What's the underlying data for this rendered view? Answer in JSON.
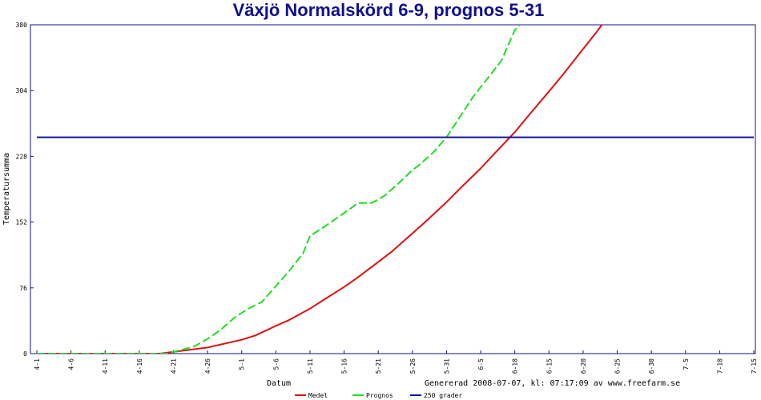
{
  "chart_data": {
    "type": "line",
    "title": "Växjö Normalskörd 6-9, prognos 5-31",
    "xlabel": "Datum",
    "ylabel": "Temperatursumma",
    "generated": "Genererad 2008-07-07, kl: 07:17:09 av www.freefarm.se",
    "ylim": [
      0,
      380
    ],
    "yticks": [
      0,
      76,
      152,
      228,
      304,
      380
    ],
    "xticks": [
      "4-1",
      "4-6",
      "4-11",
      "4-16",
      "4-21",
      "4-26",
      "5-1",
      "5-6",
      "5-11",
      "5-16",
      "5-21",
      "5-26",
      "5-31",
      "6-5",
      "6-10",
      "6-15",
      "6-20",
      "6-25",
      "6-30",
      "7-5",
      "7-10",
      "7-15"
    ],
    "xlim_days": [
      0,
      105
    ],
    "grid": false,
    "legend_position": "bottom",
    "series": [
      {
        "name": "Medel",
        "color": "#e01010",
        "dash": false,
        "points": [
          [
            "4-1",
            0
          ],
          [
            "4-19",
            0
          ],
          [
            "4-22",
            3
          ],
          [
            "4-26",
            7
          ],
          [
            "5-1",
            16
          ],
          [
            "5-3",
            21
          ],
          [
            "5-6",
            32
          ],
          [
            "5-8",
            39
          ],
          [
            "5-11",
            52
          ],
          [
            "5-13",
            62
          ],
          [
            "5-16",
            77
          ],
          [
            "5-18",
            88
          ],
          [
            "5-21",
            106
          ],
          [
            "5-23",
            118
          ],
          [
            "5-26",
            139
          ],
          [
            "5-28",
            153
          ],
          [
            "5-31",
            175
          ],
          [
            "6-2",
            191
          ],
          [
            "6-5",
            214
          ],
          [
            "6-7",
            231
          ],
          [
            "6-10",
            256
          ],
          [
            "6-12",
            275
          ],
          [
            "6-15",
            303
          ],
          [
            "6-17",
            322
          ],
          [
            "6-20",
            352
          ],
          [
            "6-22",
            372
          ],
          [
            "6-25",
            404
          ]
        ]
      },
      {
        "name": "Prognos",
        "color": "#22dd22",
        "dash": true,
        "points": [
          [
            "4-1",
            0
          ],
          [
            "4-20",
            0
          ],
          [
            "4-22",
            4
          ],
          [
            "4-24",
            8
          ],
          [
            "4-26",
            17
          ],
          [
            "4-28",
            28
          ],
          [
            "4-30",
            42
          ],
          [
            "5-2",
            52
          ],
          [
            "5-4",
            60
          ],
          [
            "5-6",
            78
          ],
          [
            "5-8",
            96
          ],
          [
            "5-10",
            116
          ],
          [
            "5-11",
            136
          ],
          [
            "5-13",
            146
          ],
          [
            "5-15",
            157
          ],
          [
            "5-17",
            168
          ],
          [
            "5-18",
            174
          ],
          [
            "5-20",
            174
          ],
          [
            "5-21",
            178
          ],
          [
            "5-22",
            183
          ],
          [
            "5-24",
            197
          ],
          [
            "5-26",
            212
          ],
          [
            "5-27",
            218
          ],
          [
            "5-29",
            232
          ],
          [
            "5-31",
            250
          ],
          [
            "6-2",
            274
          ],
          [
            "6-4",
            298
          ],
          [
            "6-6",
            318
          ],
          [
            "6-8",
            338
          ],
          [
            "6-10",
            374
          ],
          [
            "6-12",
            390
          ]
        ]
      },
      {
        "name": "250 grader",
        "color": "#1010a0",
        "dash": false,
        "points": [
          [
            "4-1",
            250
          ],
          [
            "7-15",
            250
          ]
        ]
      }
    ]
  }
}
